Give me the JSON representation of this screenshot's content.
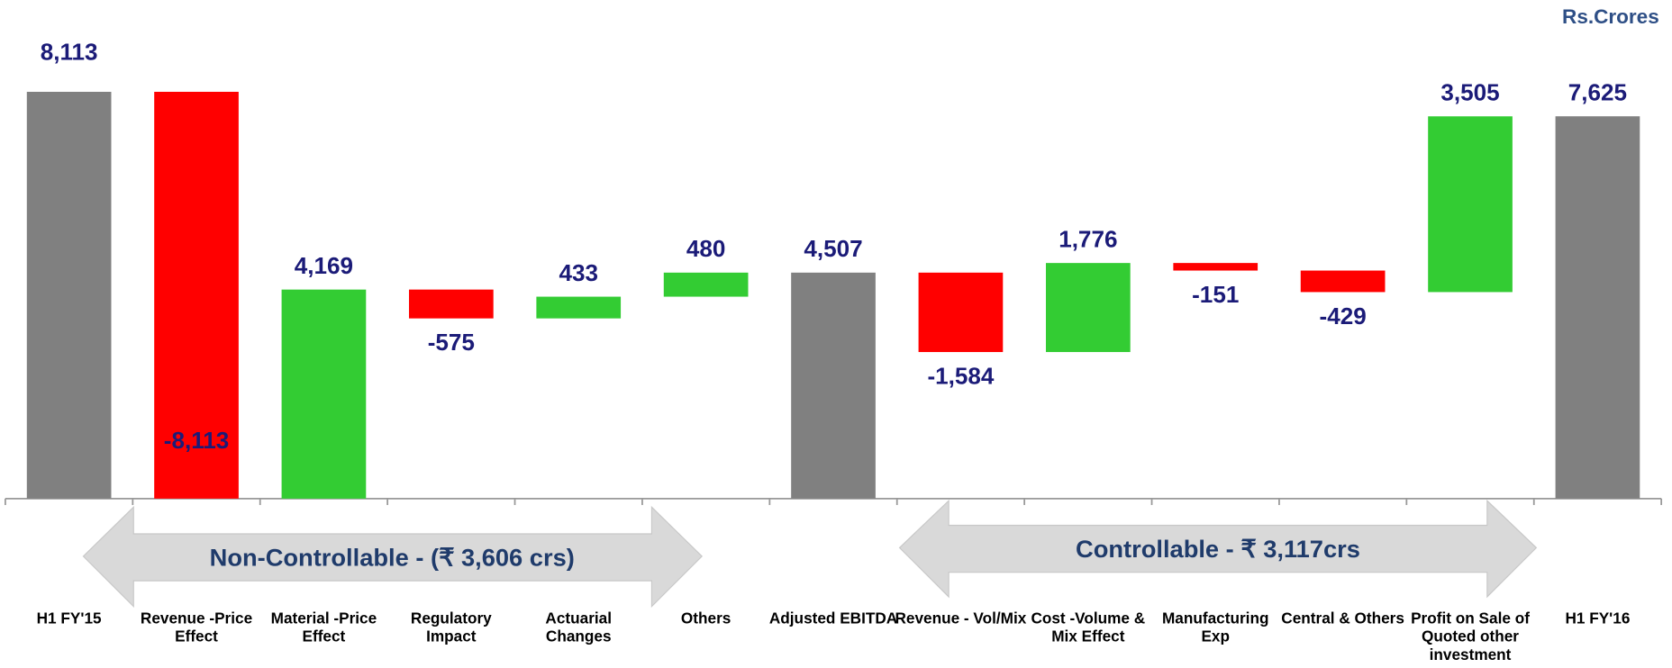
{
  "chart_data": {
    "type": "waterfall",
    "unit_label": "Rs.Crores",
    "categories": [
      "H1 FY'15",
      "Revenue -Price Effect",
      "Material -Price Effect",
      "Regulatory Impact",
      "Actuarial Changes",
      "Others",
      "Adjusted EBITDA",
      "Revenue - Vol/Mix",
      "Cost -Volume & Mix Effect",
      "Manufacturing Exp",
      "Central & Others",
      "Profit on Sale of Quoted other investment",
      "H1 FY'16"
    ],
    "values": [
      8113,
      -8113,
      4169,
      -575,
      433,
      480,
      4507,
      -1584,
      1776,
      -151,
      -429,
      3505,
      7625
    ],
    "value_labels": [
      "8,113",
      "-8,113",
      "4,169",
      "-575",
      "433",
      "480",
      "4,507",
      "-1,584",
      "1,776",
      "-151",
      "-429",
      "3,505",
      "7,625"
    ],
    "totals": [
      true,
      false,
      false,
      false,
      false,
      false,
      true,
      false,
      false,
      false,
      false,
      false,
      true
    ],
    "total_color": "#808080",
    "increase_color": "#33cc33",
    "decrease_color": "#ff0000",
    "annotations": [
      "Non-Controllable - (₹ 3,606 crs)",
      "Controllable - ₹ 3,117crs"
    ]
  }
}
